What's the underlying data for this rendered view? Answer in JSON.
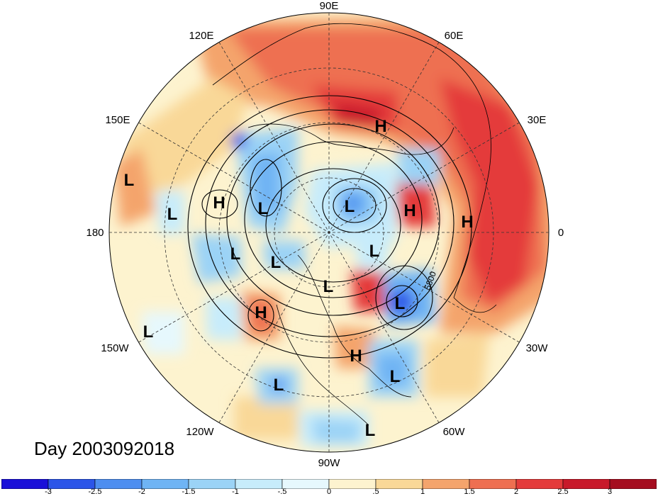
{
  "title": "Day 2003092018",
  "longitude_labels": [
    "90E",
    "60E",
    "30E",
    "0",
    "30W",
    "60W",
    "90W",
    "120W",
    "150W",
    "180",
    "150E",
    "120E"
  ],
  "contour_label": "5800",
  "pressure_systems": [
    {
      "type": "H",
      "label": "H"
    },
    {
      "type": "H",
      "label": "H"
    },
    {
      "type": "H",
      "label": "H"
    },
    {
      "type": "H",
      "label": "H"
    },
    {
      "type": "H",
      "label": "H"
    },
    {
      "type": "H",
      "label": "H"
    },
    {
      "type": "L",
      "label": "L"
    },
    {
      "type": "L",
      "label": "L"
    },
    {
      "type": "L",
      "label": "L"
    },
    {
      "type": "L",
      "label": "L"
    },
    {
      "type": "L",
      "label": "L"
    },
    {
      "type": "L",
      "label": "L"
    },
    {
      "type": "L",
      "label": "L"
    },
    {
      "type": "L",
      "label": "L"
    },
    {
      "type": "L",
      "label": "L"
    },
    {
      "type": "L",
      "label": "L"
    },
    {
      "type": "L",
      "label": "L"
    },
    {
      "type": "L",
      "label": "L"
    },
    {
      "type": "L",
      "label": "L"
    }
  ],
  "colorbar": {
    "tick_labels": [
      "-3",
      "-2.5",
      "-2",
      "-1.5",
      "-1",
      "-.5",
      "0",
      ".5",
      "1",
      "1.5",
      "2",
      "2.5",
      "3"
    ],
    "colors": [
      "#1a10d8",
      "#2b55e8",
      "#4d8ef0",
      "#6fb4f4",
      "#9bd3f6",
      "#c7ecfb",
      "#e6f8fd",
      "#fdf3cf",
      "#f9d898",
      "#f4a46c",
      "#ee6f51",
      "#e43b3b",
      "#c8192a",
      "#a50d1f"
    ]
  }
}
